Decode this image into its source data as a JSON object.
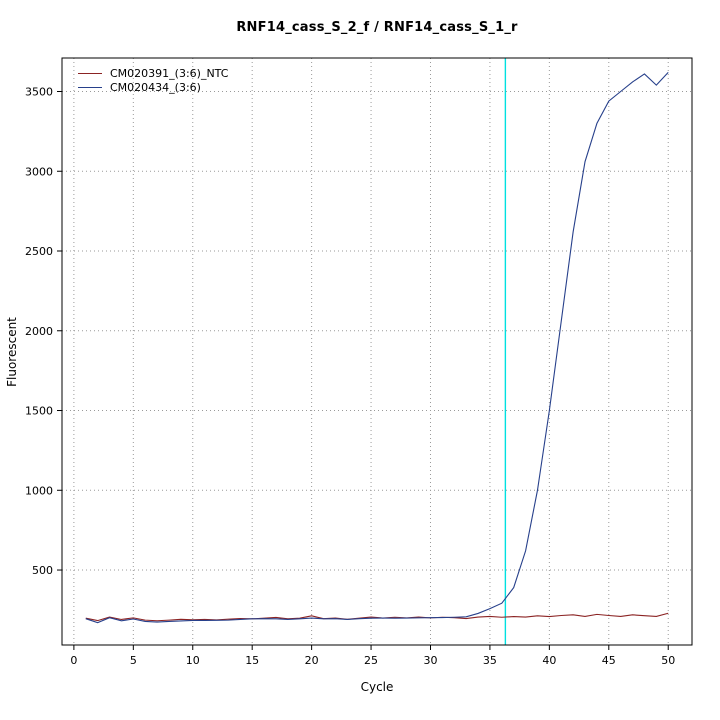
{
  "chart_data": {
    "type": "line",
    "title": "RNF14_cass_S_2_f / RNF14_cass_S_1_r",
    "xlabel": "Cycle",
    "ylabel": "Fluorescent",
    "xlim": [
      -1,
      52
    ],
    "ylim": [
      30,
      3710
    ],
    "x_ticks": [
      0,
      5,
      10,
      15,
      20,
      25,
      30,
      35,
      40,
      45,
      50
    ],
    "y_ticks": [
      500,
      1000,
      1500,
      2000,
      2500,
      3000,
      3500
    ],
    "grid": true,
    "background": "#ffffff",
    "legend_position": "top-left",
    "threshold_line": {
      "x": 36.3,
      "color": "#00e0e0"
    },
    "x": [
      1,
      2,
      3,
      4,
      5,
      6,
      7,
      8,
      9,
      10,
      11,
      12,
      13,
      14,
      15,
      16,
      17,
      18,
      19,
      20,
      21,
      22,
      23,
      24,
      25,
      26,
      27,
      28,
      29,
      30,
      31,
      32,
      33,
      34,
      35,
      36,
      37,
      38,
      39,
      40,
      41,
      42,
      43,
      44,
      45,
      46,
      47,
      48,
      49,
      50
    ],
    "series": [
      {
        "name": "CM020391_(3:6)_NTC",
        "color": "#8b2323",
        "values": [
          198,
          183,
          205,
          190,
          200,
          186,
          182,
          186,
          191,
          188,
          190,
          187,
          192,
          196,
          194,
          198,
          203,
          194,
          198,
          213,
          195,
          199,
          191,
          198,
          205,
          199,
          204,
          200,
          205,
          200,
          204,
          201,
          196,
          205,
          209,
          204,
          208,
          205,
          213,
          208,
          215,
          219,
          209,
          222,
          215,
          209,
          219,
          214,
          209,
          229
        ]
      },
      {
        "name": "CM020434_(3:6)",
        "color": "#27408b",
        "values": [
          195,
          170,
          201,
          182,
          193,
          178,
          174,
          178,
          181,
          184,
          184,
          185,
          186,
          190,
          194,
          195,
          194,
          190,
          194,
          199,
          194,
          195,
          190,
          195,
          198,
          199,
          198,
          199,
          200,
          201,
          202,
          204,
          207,
          228,
          258,
          292,
          390,
          620,
          1000,
          1500,
          2060,
          2620,
          3060,
          3300,
          3440,
          3500,
          3560,
          3610,
          3540,
          3620
        ]
      }
    ]
  }
}
